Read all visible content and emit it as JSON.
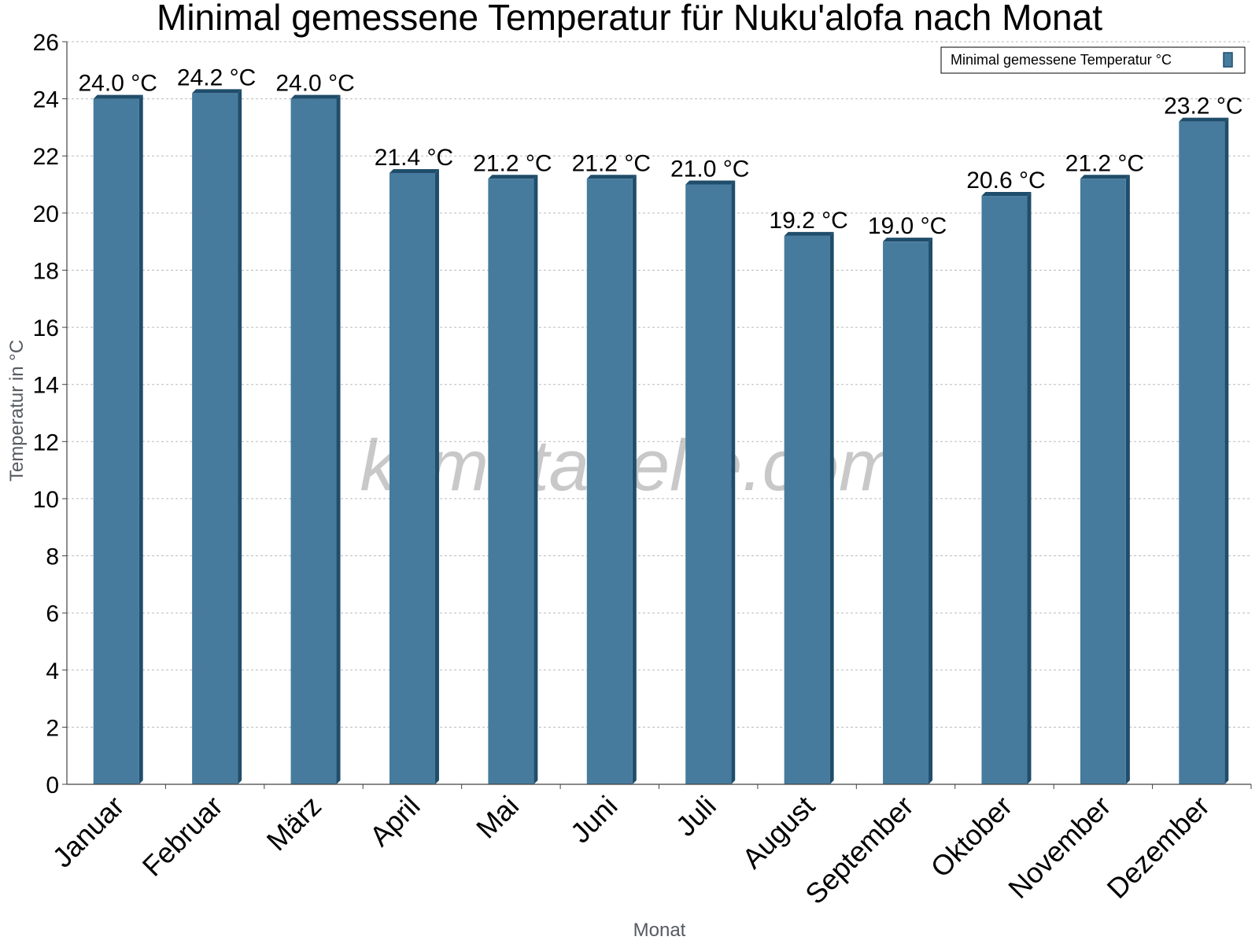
{
  "chart_data": {
    "type": "bar",
    "title": "Minimal gemessene Temperatur für Nuku'alofa nach Monat",
    "xlabel": "Monat",
    "ylabel": "Temperatur in °C",
    "categories": [
      "Januar",
      "Februar",
      "März",
      "April",
      "Mai",
      "Juni",
      "Juli",
      "August",
      "September",
      "Oktober",
      "November",
      "Dezember"
    ],
    "series": [
      {
        "name": "Minimal gemessene Temperatur °C",
        "values": [
          24.0,
          24.2,
          24.0,
          21.4,
          21.2,
          21.2,
          21.0,
          19.2,
          19.0,
          20.6,
          21.2,
          23.2
        ],
        "data_labels": [
          "24.0 °C",
          "24.2 °C",
          "24.0 °C",
          "21.4 °C",
          "21.2 °C",
          "21.2 °C",
          "21.0 °C",
          "19.2 °C",
          "19.0 °C",
          "20.6 °C",
          "21.2 °C",
          "23.2 °C"
        ]
      }
    ],
    "ylim": [
      0,
      26
    ],
    "yticks": [
      0,
      2,
      4,
      6,
      8,
      10,
      12,
      14,
      16,
      18,
      20,
      22,
      24,
      26
    ],
    "grid": true,
    "legend_position": "top-right",
    "watermark": "klimatabelle.com",
    "colors": {
      "bar": "#467b9d",
      "bar_side": "#1f4d6b",
      "grid": "#bbbbbb",
      "axis": "#444444"
    }
  }
}
